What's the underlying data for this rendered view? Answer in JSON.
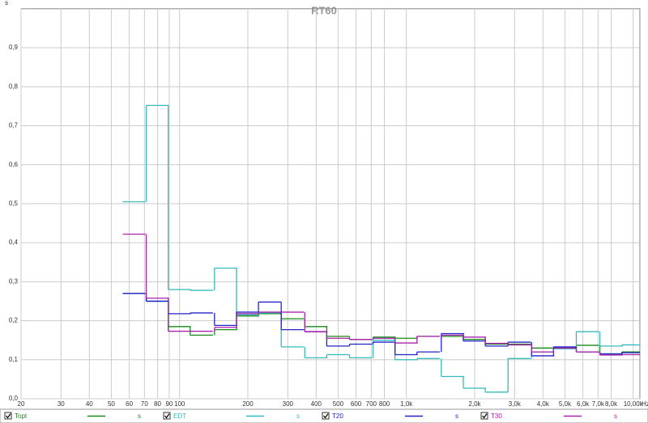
{
  "chart_data": {
    "type": "step",
    "title": "RT60",
    "y_unit": "s",
    "x_unit": "Hz",
    "log_x": true,
    "grid": true,
    "xlim": [
      20,
      10700
    ],
    "ylim": [
      0,
      1
    ],
    "xticks": [
      20,
      30,
      40,
      50,
      60,
      70,
      80,
      90,
      100,
      200,
      300,
      400,
      500,
      600,
      700,
      800,
      {
        "value": 1000,
        "label": "1,0k"
      },
      {
        "value": 2000,
        "label": "2,0k"
      },
      {
        "value": 3000,
        "label": "3,0k"
      },
      {
        "value": 4000,
        "label": "4,0k"
      },
      {
        "value": 5000,
        "label": "5,0k"
      },
      {
        "value": 6000,
        "label": "6,0k"
      },
      {
        "value": 7000,
        "label": "7,0k"
      },
      {
        "value": 8000,
        "label": "8,0k"
      },
      {
        "value": 10000,
        "label": "10,00k"
      }
    ],
    "yticks": [
      {
        "value": 0,
        "label": "0,0"
      },
      {
        "value": 0.1,
        "label": "0,1"
      },
      {
        "value": 0.2,
        "label": "0,2"
      },
      {
        "value": 0.3,
        "label": "0,3"
      },
      {
        "value": 0.4,
        "label": "0,4"
      },
      {
        "value": 0.5,
        "label": "0,5"
      },
      {
        "value": 0.6,
        "label": "0,6"
      },
      {
        "value": 0.7,
        "label": "0,7"
      },
      {
        "value": 0.8,
        "label": "0,8"
      },
      {
        "value": 0.9,
        "label": "0,9"
      }
    ],
    "x": [
      63,
      80,
      100,
      125,
      160,
      200,
      250,
      315,
      400,
      500,
      630,
      800,
      1000,
      1250,
      1600,
      2000,
      2500,
      3150,
      4000,
      5000,
      6300,
      8000,
      10000
    ],
    "series": [
      {
        "name": "Topt",
        "color": "#1a8a1a",
        "values": [
          0.27,
          0.25,
          0.185,
          0.163,
          0.177,
          0.212,
          0.218,
          0.205,
          0.185,
          0.16,
          0.152,
          0.158,
          0.155,
          0.16,
          0.16,
          0.152,
          0.14,
          0.14,
          0.13,
          0.13,
          0.137,
          0.115,
          0.12
        ]
      },
      {
        "name": "EDT",
        "color": "#33bbbb",
        "values": [
          0.505,
          0.752,
          0.28,
          0.278,
          0.335,
          0.215,
          0.22,
          0.133,
          0.105,
          0.113,
          0.105,
          0.15,
          0.1,
          0.103,
          0.057,
          0.027,
          0.017,
          0.103,
          0.12,
          0.128,
          0.172,
          0.135,
          0.138
        ]
      },
      {
        "name": "T20",
        "color": "#2222cc",
        "values": [
          0.27,
          0.25,
          0.218,
          0.22,
          0.188,
          0.222,
          0.248,
          0.177,
          0.172,
          0.135,
          0.14,
          0.145,
          0.113,
          0.12,
          0.167,
          0.148,
          0.135,
          0.145,
          0.11,
          0.133,
          0.12,
          0.115,
          0.118
        ]
      },
      {
        "name": "T30",
        "color": "#aa22aa",
        "values": [
          0.422,
          0.258,
          0.173,
          0.173,
          0.183,
          0.218,
          0.222,
          0.222,
          0.172,
          0.155,
          0.152,
          0.155,
          0.143,
          0.16,
          0.163,
          0.158,
          0.142,
          0.138,
          0.12,
          0.13,
          0.12,
          0.112,
          0.113
        ]
      }
    ]
  }
}
